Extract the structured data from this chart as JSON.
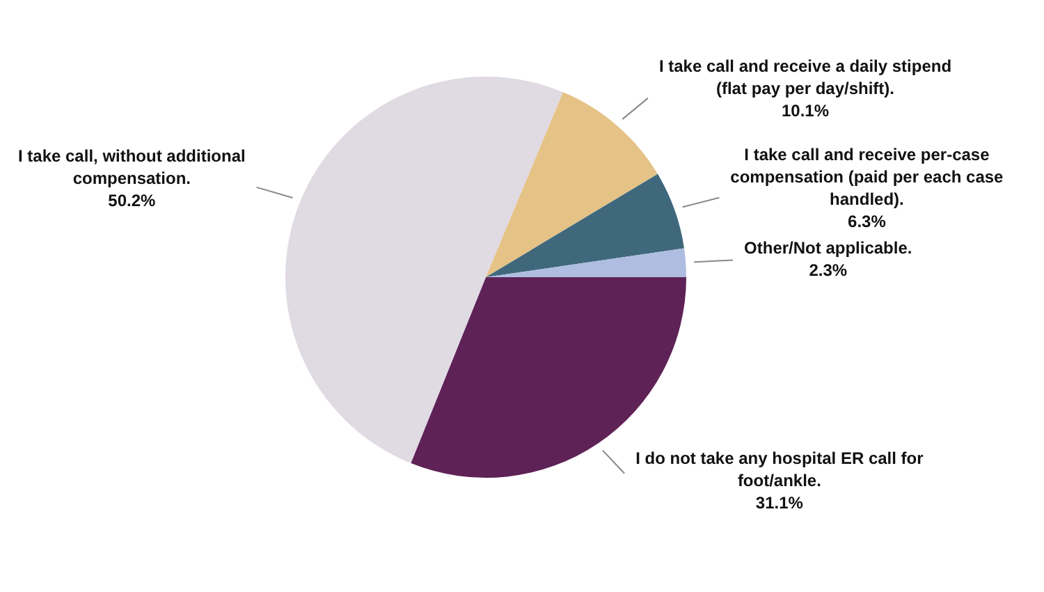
{
  "chart_data": {
    "type": "pie",
    "categories": [
      "I do not take any hospital ER call for foot/ankle.",
      "I take call, without additional compensation.",
      "I take call and receive a daily stipend (flat pay per day/shift).",
      "I take call and receive per-case compensation (paid per each case handled).",
      "Other/Not applicable."
    ],
    "values": [
      31.1,
      50.2,
      10.1,
      6.3,
      2.3
    ],
    "value_labels": [
      "31.1%",
      "50.2%",
      "10.1%",
      "6.3%",
      "2.3%"
    ],
    "colors": [
      "#5e2257",
      "#e0dae3",
      "#e5c387",
      "#40687c",
      "#aebde0"
    ],
    "legend": false
  }
}
